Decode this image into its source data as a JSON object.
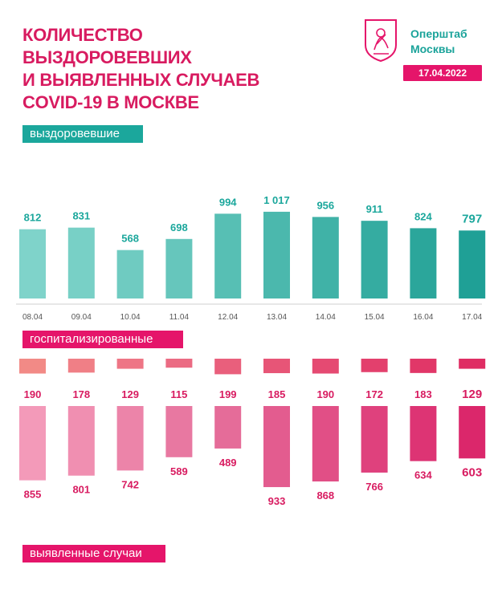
{
  "header": {
    "title_lines": [
      "КОЛИЧЕСТВО ВЫЗДОРОВЕВШИХ",
      "И ВЫЯВЛЕННЫХ СЛУЧАЕВ",
      "COVID-19 В МОСКВЕ"
    ],
    "org_lines": [
      "Оперштаб",
      "Москвы"
    ],
    "date": "17.04.2022",
    "logo_icon": "moscow-coat-of-arms-icon"
  },
  "colors": {
    "title": "#d81b60",
    "accent_pink": "#e5156a",
    "accent_teal": "#1ba79c",
    "org_text": "#1aa39a"
  },
  "chart_data": [
    {
      "type": "bar",
      "label": "выздоровевшие",
      "categories": [
        "08.04",
        "09.04",
        "10.04",
        "11.04",
        "12.04",
        "13.04",
        "14.04",
        "15.04",
        "16.04",
        "17.04"
      ],
      "values": [
        812,
        831,
        568,
        698,
        994,
        1017,
        956,
        911,
        824,
        797
      ],
      "value_labels": [
        "812",
        "831",
        "568",
        "698",
        "994",
        "1 017",
        "956",
        "911",
        "824",
        "797"
      ],
      "colors": [
        "#7fd3ca",
        "#78d0c6",
        "#6fcbc1",
        "#66c6bc",
        "#57bfb4",
        "#4bb8ad",
        "#40b2a7",
        "#35aca1",
        "#2ba69b",
        "#1fa096"
      ]
    },
    {
      "type": "bar",
      "label": "госпитализированные",
      "categories": [
        "08.04",
        "09.04",
        "10.04",
        "11.04",
        "12.04",
        "13.04",
        "14.04",
        "15.04",
        "16.04",
        "17.04"
      ],
      "values": [
        190,
        178,
        129,
        115,
        199,
        185,
        190,
        172,
        183,
        129
      ],
      "value_labels": [
        "190",
        "178",
        "129",
        "115",
        "199",
        "185",
        "190",
        "172",
        "183",
        "129"
      ],
      "colors": [
        "#f28a86",
        "#f07f86",
        "#ee7585",
        "#eb6b83",
        "#e95f7c",
        "#e75577",
        "#e54a72",
        "#e3406d",
        "#e13768",
        "#df2d63"
      ]
    },
    {
      "type": "bar",
      "label": "выявленные случаи",
      "categories": [
        "08.04",
        "09.04",
        "10.04",
        "11.04",
        "12.04",
        "13.04",
        "14.04",
        "15.04",
        "16.04",
        "17.04"
      ],
      "values": [
        855,
        801,
        742,
        589,
        489,
        933,
        868,
        766,
        634,
        603
      ],
      "value_labels": [
        "855",
        "801",
        "742",
        "589",
        "489",
        "933",
        "868",
        "766",
        "634",
        "603"
      ],
      "colors": [
        "#f39ab9",
        "#f08fb1",
        "#ec84a9",
        "#e878a1",
        "#e56c99",
        "#e35c8f",
        "#e14f86",
        "#df417d",
        "#dd3474",
        "#db276b"
      ]
    }
  ]
}
